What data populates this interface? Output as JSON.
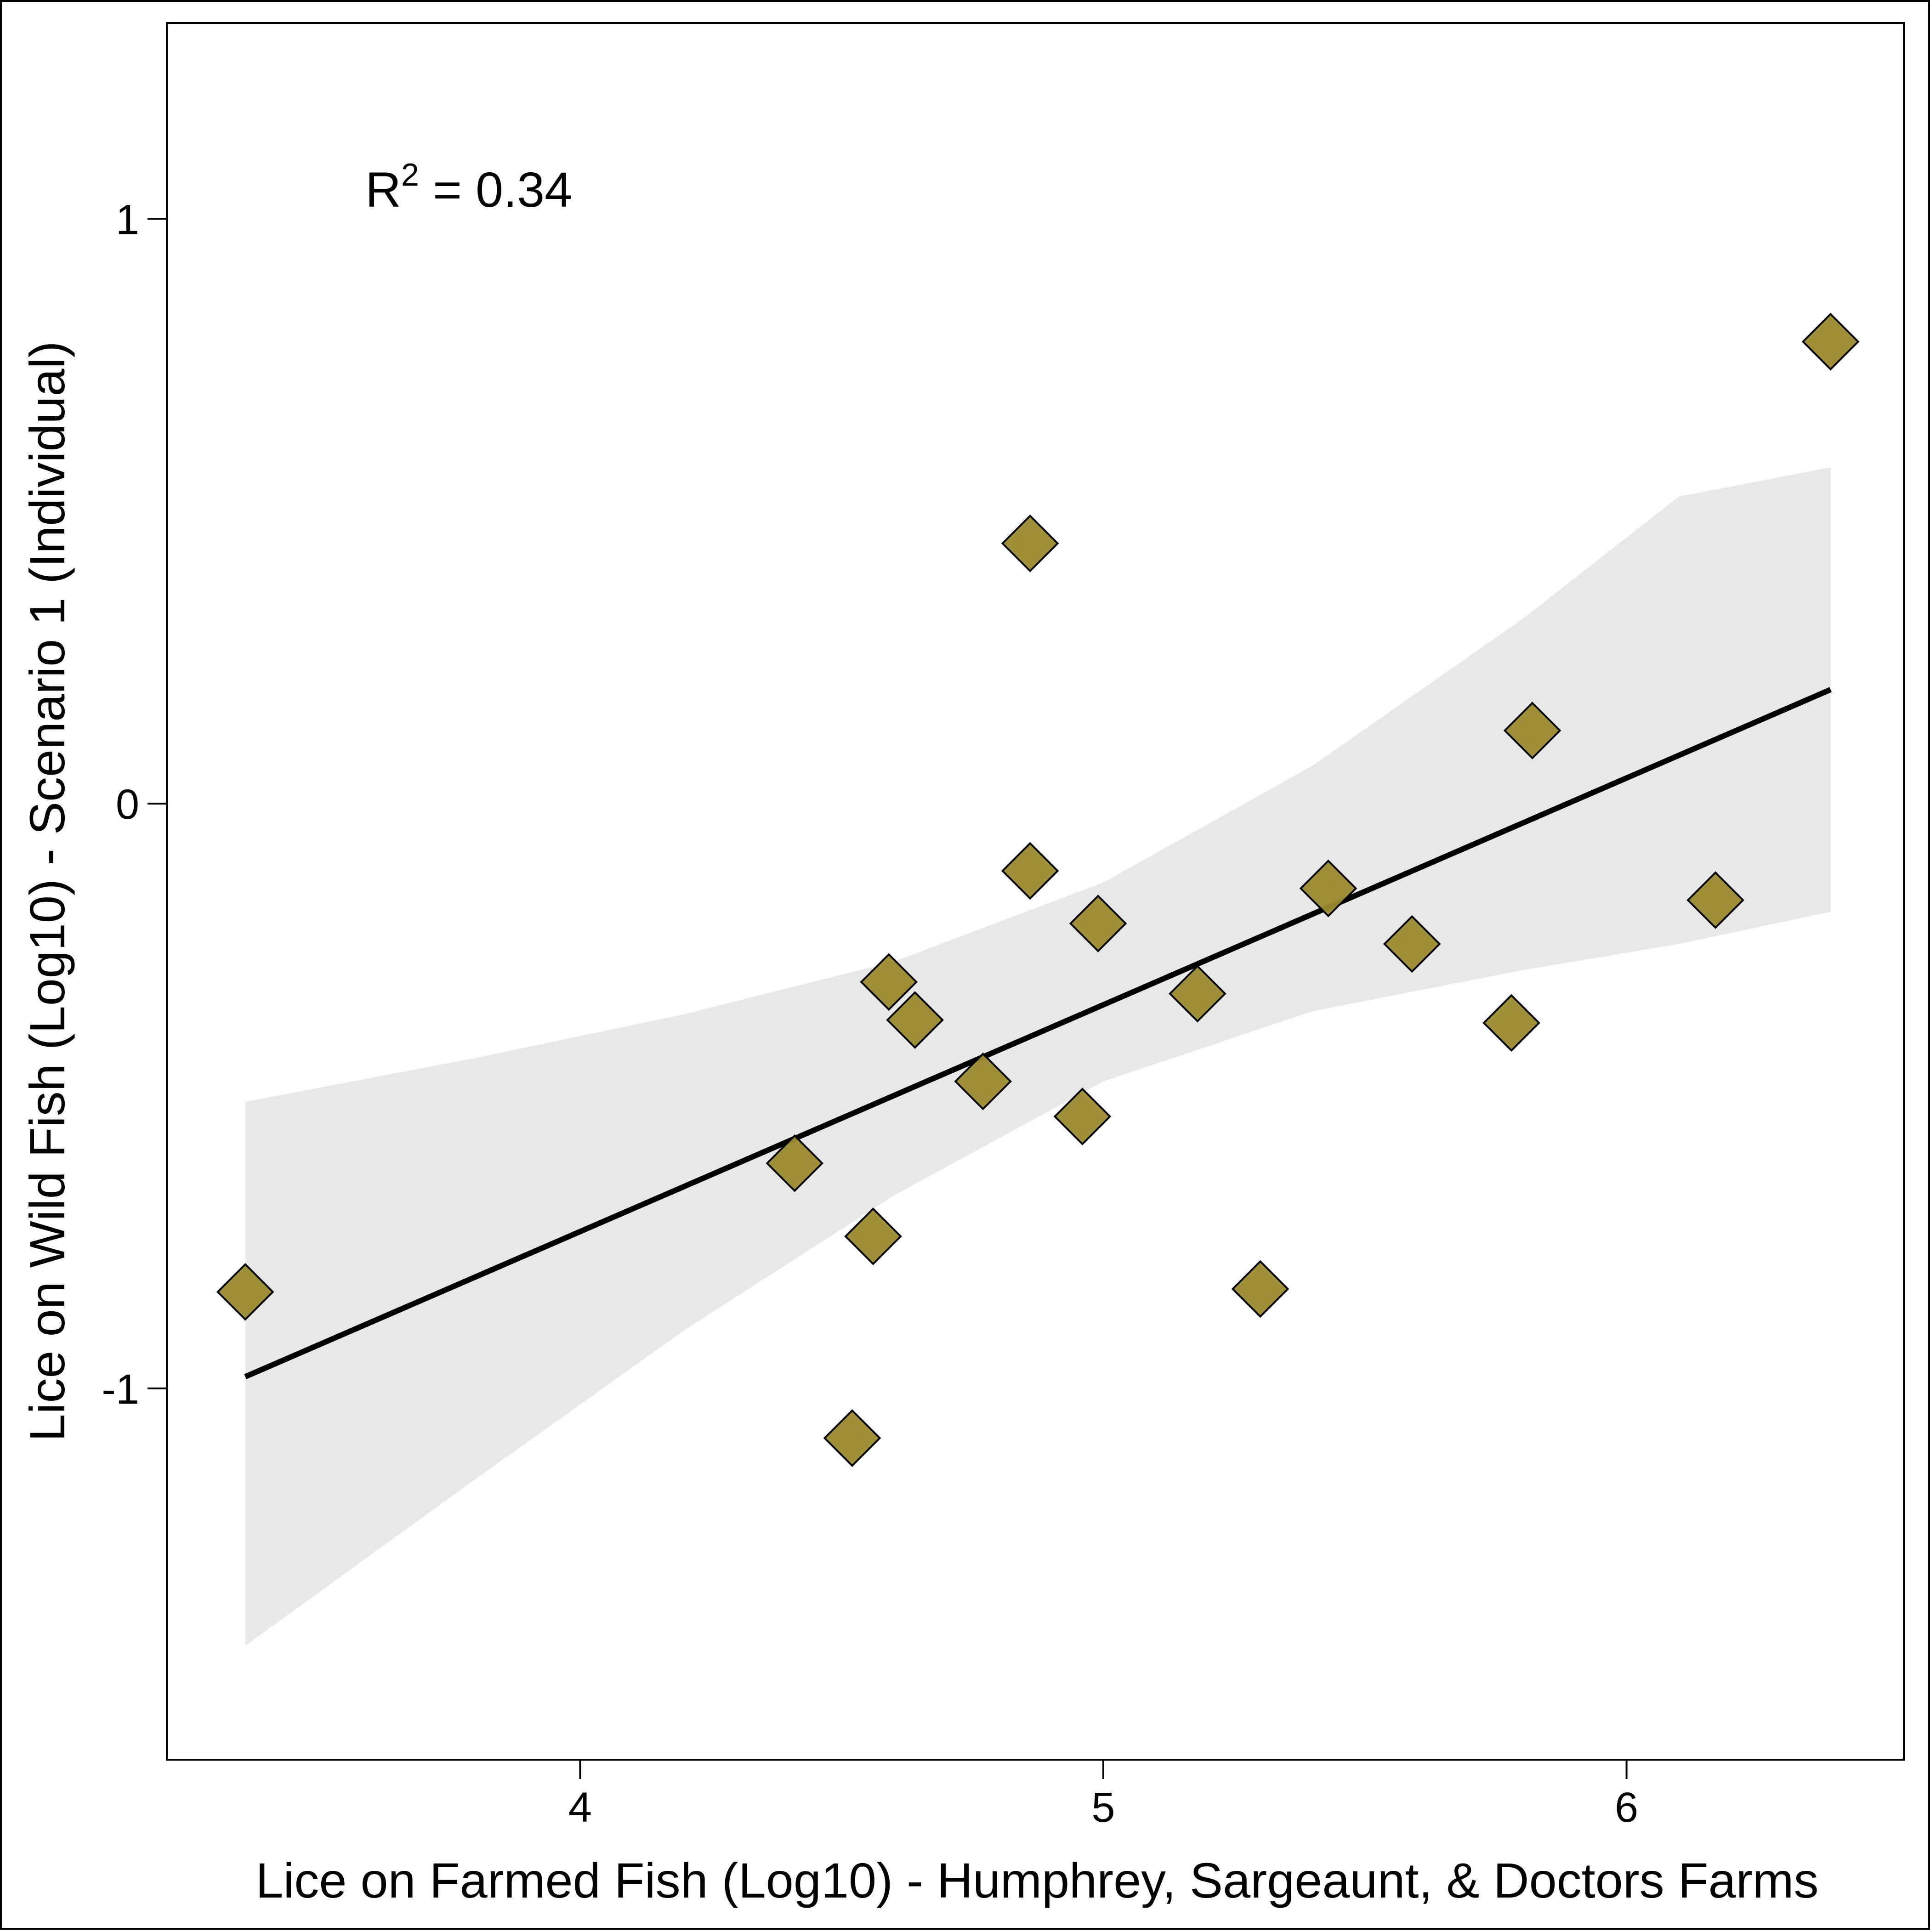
{
  "chart_data": {
    "type": "scatter",
    "title": "",
    "xlabel": "Lice on Farmed Fish (Log10) - Humphrey, Sargeaunt, & Doctors Farms",
    "ylabel": "Lice on Wild Fish (Log10) - Scenario 1 (Individual)",
    "xlim": [
      3.21,
      6.53
    ],
    "ylim": [
      -1.635,
      1.335
    ],
    "x_ticks": [
      4,
      5,
      6
    ],
    "y_ticks": [
      -1,
      0,
      1
    ],
    "x_tick_labels": [
      "4",
      "5",
      "6"
    ],
    "y_tick_labels": [
      "-1",
      "0",
      "1"
    ],
    "grid": false,
    "annotation": {
      "prefix": "R",
      "superscript": "2",
      "text": " = 0.34"
    },
    "marker_color": "#9b8a2e",
    "series": [
      {
        "points": [
          {
            "x": 3.36,
            "y": -0.835
          },
          {
            "x": 4.41,
            "y": -0.615
          },
          {
            "x": 4.52,
            "y": -1.085
          },
          {
            "x": 4.56,
            "y": -0.74
          },
          {
            "x": 4.59,
            "y": -0.305
          },
          {
            "x": 4.64,
            "y": -0.37
          },
          {
            "x": 4.77,
            "y": -0.475
          },
          {
            "x": 4.86,
            "y": 0.445
          },
          {
            "x": 4.86,
            "y": -0.115
          },
          {
            "x": 4.96,
            "y": -0.535
          },
          {
            "x": 4.99,
            "y": -0.205
          },
          {
            "x": 5.18,
            "y": -0.325
          },
          {
            "x": 5.3,
            "y": -0.83
          },
          {
            "x": 5.43,
            "y": -0.145
          },
          {
            "x": 5.59,
            "y": -0.24
          },
          {
            "x": 5.78,
            "y": -0.375
          },
          {
            "x": 5.82,
            "y": 0.125
          },
          {
            "x": 6.17,
            "y": -0.165
          },
          {
            "x": 6.39,
            "y": 0.79
          }
        ]
      }
    ],
    "fit_line": {
      "x": [
        3.36,
        6.39
      ],
      "y": [
        -0.98,
        0.195
      ]
    },
    "confidence_band": {
      "x": [
        3.36,
        3.8,
        4.2,
        4.6,
        5.0,
        5.4,
        5.8,
        6.1,
        6.39
      ],
      "upper": [
        -0.51,
        -0.435,
        -0.36,
        -0.27,
        -0.135,
        0.065,
        0.315,
        0.525,
        0.575
      ],
      "lower": [
        -1.44,
        -1.155,
        -0.9,
        -0.67,
        -0.475,
        -0.355,
        -0.285,
        -0.24,
        -0.185
      ],
      "color": "#e8e8e8"
    },
    "fit_line_color": "#000000"
  }
}
